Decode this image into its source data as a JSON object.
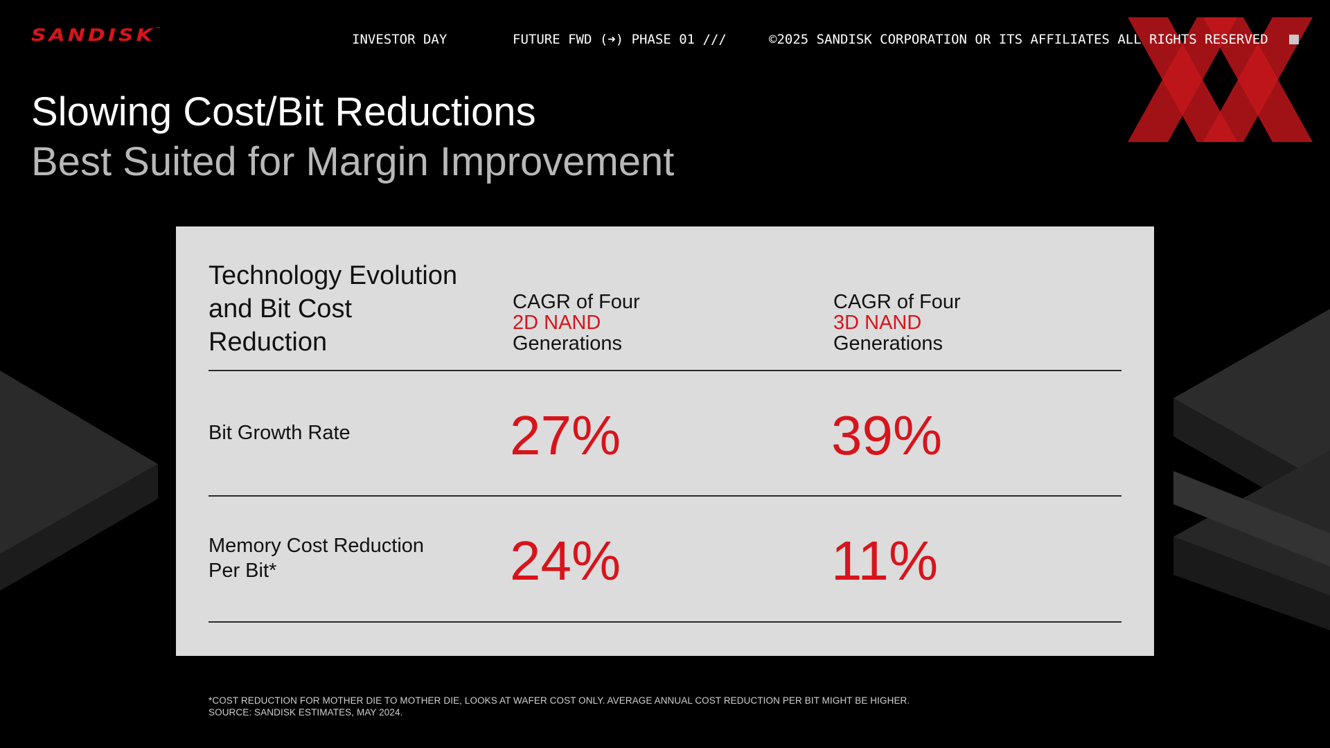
{
  "brand": {
    "logo_text": "SANDISK",
    "trademark": "™",
    "accent_color": "#d7141c"
  },
  "topbar": {
    "event": "INVESTOR DAY",
    "phase": "FUTURE FWD (➜) PHASE 01 ///",
    "copyright": "©2025 SANDISK CORPORATION OR ITS AFFILIATES ALL RIGHTS RESERVED"
  },
  "heading": {
    "title": "Slowing Cost/Bit Reductions",
    "subtitle": "Best Suited for Margin Improvement"
  },
  "table": {
    "header_left": "Technology Evolution and Bit Cost Reduction",
    "columns": [
      {
        "line1": "CAGR of Four",
        "highlight": "2D NAND",
        "line3": "Generations"
      },
      {
        "line1": "CAGR of Four",
        "highlight": "3D NAND",
        "line3": "Generations"
      }
    ],
    "rows": [
      {
        "label": "Bit Growth Rate",
        "values": [
          "27%",
          "39%"
        ]
      },
      {
        "label": "Memory Cost Reduction Per Bit*",
        "values": [
          "24%",
          "11%"
        ]
      }
    ]
  },
  "footnotes": {
    "note": "*COST REDUCTION FOR MOTHER DIE TO MOTHER DIE, LOOKS AT WAFER COST ONLY. AVERAGE ANNUAL COST REDUCTION PER BIT MIGHT BE HIGHER.",
    "source": "SOURCE: SANDISK ESTIMATES, MAY 2024."
  }
}
